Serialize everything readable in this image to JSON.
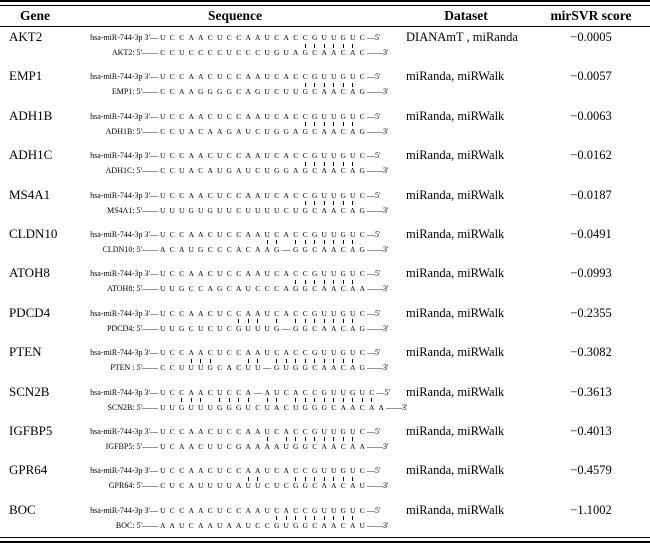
{
  "table": {
    "columns": [
      "Gene",
      "Sequence",
      "Dataset",
      "mirSVR score"
    ],
    "rows": [
      {
        "gene": "AKT2",
        "top_label": "hsa-miR-744-3p 3'—",
        "top_seq": "UCCAACUCCAAUCACCGUUGUC",
        "top_end": "—5'",
        "bot_label": "AKT2: 5'——",
        "bot_seq": "CCUCCCCUCCCUGUAGCAACAC",
        "bot_pairs": "0000000000000001111110",
        "bot_end": "——3'",
        "dataset": "DIANAmT , miRanda",
        "score": "−0.0005"
      },
      {
        "gene": "EMP1",
        "top_label": "hsa-miR-744-3p 3'—",
        "top_seq": "UCCAACUCCAAUCACCGUUGUC",
        "top_end": "—5'",
        "bot_label": "EMP1: 5'——",
        "bot_seq": "CCAAGGGGCAGUCUUGCAACAG",
        "bot_pairs": "0000000000000001111110",
        "bot_end": "——3'",
        "dataset": "miRanda, miRWalk",
        "score": "−0.0057"
      },
      {
        "gene": "ADH1B",
        "top_label": "hsa-miR-744-3p 3'—",
        "top_seq": "UCCAACUCCAAUCACCGUUGUC",
        "top_end": "—5'",
        "bot_label": "ADH1B: 5'——",
        "bot_seq": "CCUACAAGAUCUGGAGCAACAG",
        "bot_pairs": "0000000000000001111110",
        "bot_end": "——3'",
        "dataset": "miRanda, miRWalk",
        "score": "−0.0063"
      },
      {
        "gene": "ADH1C",
        "top_label": "hsa-miR-744-3p 3'—",
        "top_seq": "UCCAACUCCAAUCACCGUUGUC",
        "top_end": "—5'",
        "bot_label": "ADH1C: 5'——",
        "bot_seq": "CCUACAUGAUCUGGAGCAACAG",
        "bot_pairs": "0000000000000001111110",
        "bot_end": "——3'",
        "dataset": "miRanda, miRWalk",
        "score": "−0.0162"
      },
      {
        "gene": "MS4A1",
        "top_label": "hsa-miR-744-3p 3'—",
        "top_seq": "UCCAACUCCAAUCACCGUUGUC",
        "top_end": "—5'",
        "bot_label": "MS4A1: 5'——",
        "bot_seq": "UUUGUGUUCUUUUCUGCAACAG",
        "bot_pairs": "0000000000000001111110",
        "bot_end": "——3'",
        "dataset": "miRanda, miRWalk",
        "score": "−0.0187"
      },
      {
        "gene": "CLDN10",
        "top_label": "hsa-miR-744-3p 3'—",
        "top_seq": "UCCAACUCCAAUCACCGUUGUC",
        "top_end": "—5'",
        "bot_label": "CLDN10: 5'——",
        "bot_seq": "ACAUGCCCACAAG-GGCAACAG",
        "bot_pairs": "0000000000011011111110",
        "bot_end": "——3'",
        "dataset": "miRanda, miRWalk",
        "score": "−0.0491"
      },
      {
        "gene": "ATOH8",
        "top_label": "hsa-miR-744-3p 3'—",
        "top_seq": "UCCAACUCCAAUCACCGUUGUC",
        "top_end": "—5'",
        "bot_label": "ATOH8: 5'——",
        "bot_seq": "UUGCCAGCAUCCCAGGCAACAA",
        "bot_pairs": "0000000000000011111110",
        "bot_end": "——3'",
        "dataset": "miRanda, miRWalk",
        "score": "−0.0993"
      },
      {
        "gene": "PDCD4",
        "top_label": "hsa-miR-744-3p 3'—",
        "top_seq": "UCCAACUCCAAUCACCGUUGUC",
        "top_end": "—5'",
        "bot_label": "PDCD4: 5'——",
        "bot_seq": "UUGCUCUCGUUUG-GGCAACAG",
        "bot_pairs": "0000000011101011111110",
        "bot_end": "——3'",
        "dataset": "miRanda, miRWalk",
        "score": "−0.2355"
      },
      {
        "gene": "PTEN",
        "top_label": "hsa-miR-744-3p 3'—",
        "top_seq": "UCCAACUCCAAUCACCGUUGUC",
        "top_end": "—5'",
        "bot_label": "PTEN : 5'——",
        "bot_seq": "CCUUUGCACUU-GUGGCAACAG",
        "bot_pairs": "0001110001101111111110",
        "bot_end": "——3'",
        "dataset": "miRanda, miRWalk",
        "score": "−0.3082"
      },
      {
        "gene": "SCN2B",
        "top_label": "hsa-miR-744-3p 3'—",
        "top_seq": "UCCAACUCCA-AUCACCGUUGUC",
        "top_end": "—5'",
        "bot_label": "SCN2B: 5'——",
        "bot_seq": "UUGUUUGGGUCUACUGGGCAACAA",
        "bot_pairs": "001110111101101111111110",
        "bot_end": "——3'",
        "dataset": "miRanda, miRWalk",
        "score": "−0.3613"
      },
      {
        "gene": "IGFBP5",
        "top_label": "hsa-miR-744-3p 3'—",
        "top_seq": "UCCAACUCCAAUCACCGUUGUC",
        "top_end": "—5'",
        "bot_label": "IGFBP5: 5'——",
        "bot_seq": "UCAACUUCGAAAAUGGCAACAA",
        "bot_pairs": "0000000000010111111110",
        "bot_end": "——3'",
        "dataset": "miRanda, miRWalk",
        "score": "−0.4013"
      },
      {
        "gene": "GPR64",
        "top_label": "hsa-miR-744-3p 3'—",
        "top_seq": "UCCAACUCCAAUCACCGUUGUC",
        "top_end": "—5'",
        "bot_label": "GPR64: 5'——",
        "bot_seq": "CUCAUUUUAUUCUCGGCAACAU",
        "bot_pairs": "0000000001100011111110",
        "bot_end": "——3'",
        "dataset": "miRanda, miRWalk",
        "score": "−0.4579"
      },
      {
        "gene": "BOC",
        "top_label": "hsa-miR-744-3p 3'—",
        "top_seq": "UCCAACUCCAAUCACCGUUGUC",
        "top_end": "—5'",
        "bot_label": "BOC: 5'——",
        "bot_seq": "AAUCAAUAAUCCGUGGCAACAU",
        "bot_pairs": "0000000000001111111110",
        "bot_end": "——3'",
        "dataset": "miRanda, miRWalk",
        "score": "−1.1002"
      }
    ]
  }
}
